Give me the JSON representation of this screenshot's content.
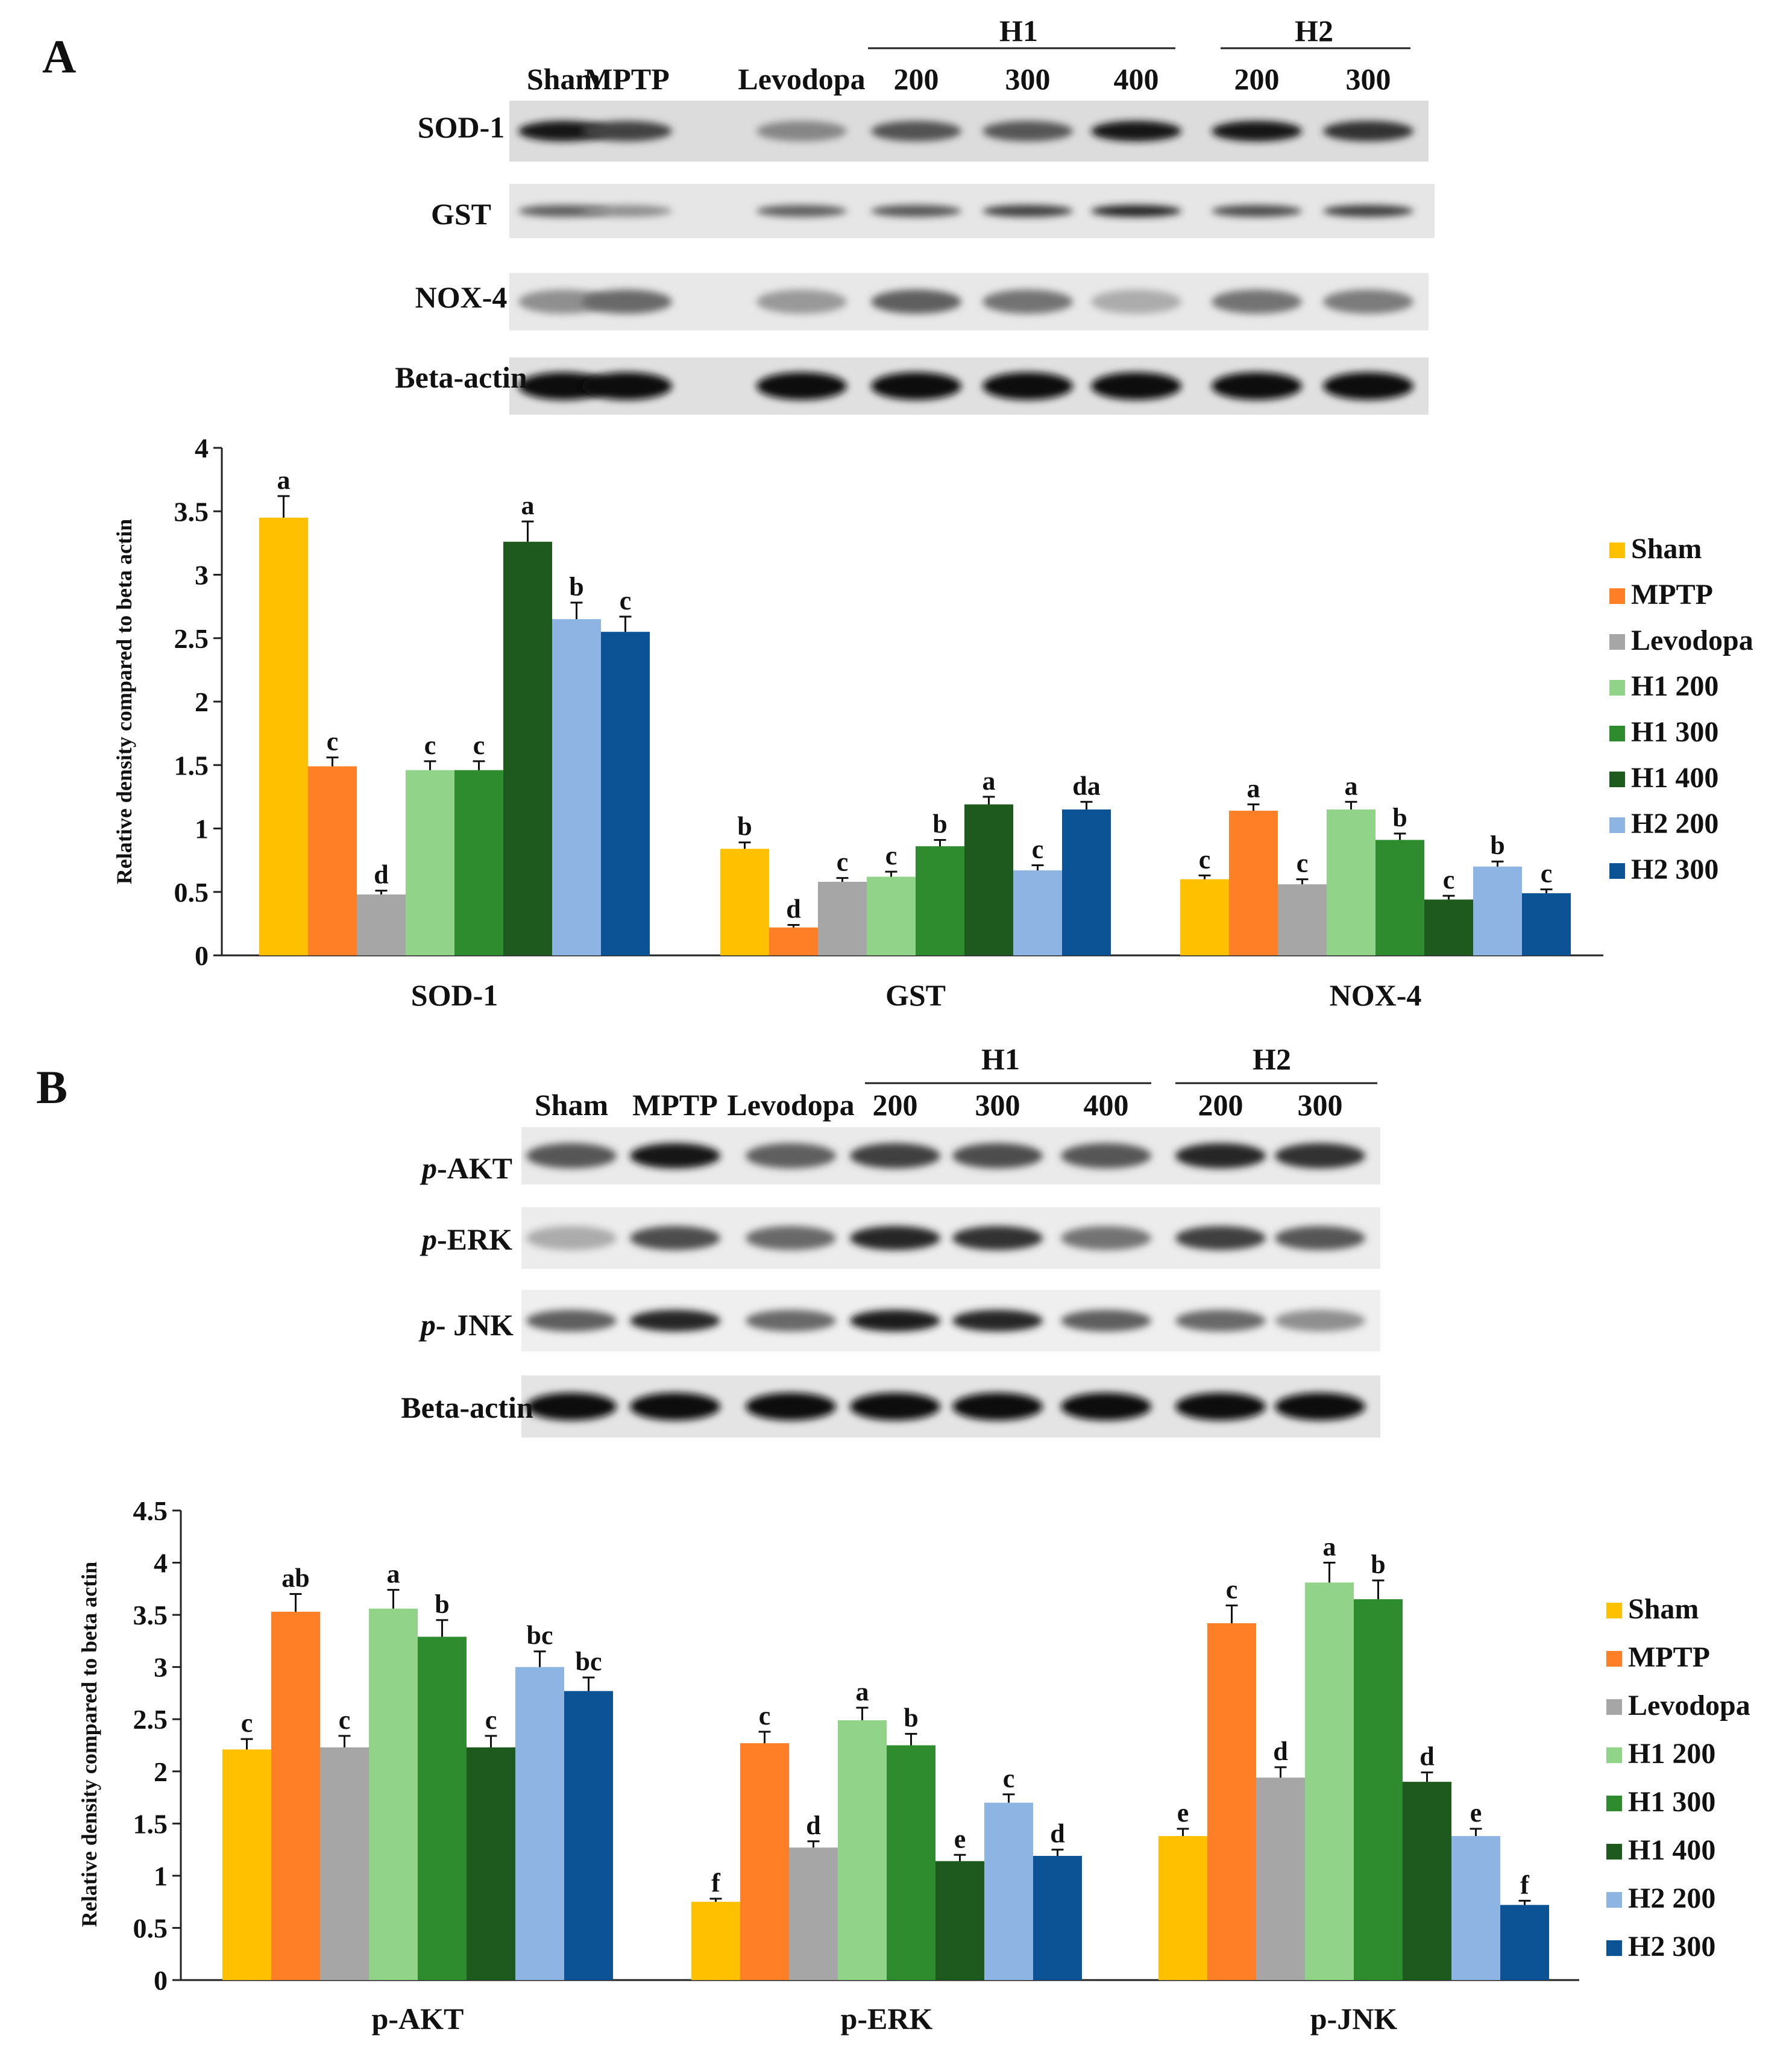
{
  "panels": [
    {
      "letter": "A",
      "group_headers": [
        "H1",
        "H2"
      ],
      "lane_labels": [
        "Sham",
        "MPTP",
        "Levodopa",
        "200",
        "300",
        "400",
        "200",
        "300"
      ],
      "blot_rows": [
        {
          "label": "SOD-1",
          "italic_prefix": ""
        },
        {
          "label": "GST",
          "italic_prefix": ""
        },
        {
          "label": "NOX-4",
          "italic_prefix": ""
        },
        {
          "label": "Beta-actin",
          "italic_prefix": ""
        }
      ]
    },
    {
      "letter": "B",
      "group_headers": [
        "H1",
        "H2"
      ],
      "lane_labels": [
        "Sham",
        "MPTP",
        "Levodopa",
        "200",
        "300",
        "400",
        "200",
        "300"
      ],
      "blot_rows": [
        {
          "label": "-AKT",
          "italic_prefix": "p"
        },
        {
          "label": "-ERK",
          "italic_prefix": "p"
        },
        {
          "label": "- JNK",
          "italic_prefix": "p"
        },
        {
          "label": "Beta-actin",
          "italic_prefix": ""
        }
      ]
    }
  ],
  "chart_data": [
    {
      "type": "bar",
      "panel": "A",
      "ylabel": "Relative density compared to beta actin",
      "ylim": [
        0,
        4
      ],
      "yticks": [
        "0",
        "0.5",
        "1",
        "1.5",
        "2",
        "2.5",
        "3",
        "3.5",
        "4"
      ],
      "yticks_values": [
        0,
        0.5,
        1,
        1.5,
        2,
        2.5,
        3,
        3.5,
        4
      ],
      "categories": [
        "SOD-1",
        "GST",
        "NOX-4"
      ],
      "legend_position": "right",
      "series": [
        {
          "name": "Sham",
          "color": "#FFC000",
          "values": [
            3.45,
            0.84,
            0.6
          ],
          "errors": [
            0.17,
            0.05,
            0.03
          ],
          "letters": [
            "a",
            "b",
            "c"
          ]
        },
        {
          "name": "MPTP",
          "color": "#FF7F27",
          "values": [
            1.49,
            0.22,
            1.14
          ],
          "errors": [
            0.07,
            0.02,
            0.05
          ],
          "letters": [
            "c",
            "d",
            "a"
          ]
        },
        {
          "name": "Levodopa",
          "color": "#A6A6A6",
          "values": [
            0.48,
            0.58,
            0.56
          ],
          "errors": [
            0.03,
            0.03,
            0.04
          ],
          "letters": [
            "d",
            "c",
            "c"
          ]
        },
        {
          "name": "H1 200",
          "color": "#92D38A",
          "values": [
            1.46,
            0.62,
            1.15
          ],
          "errors": [
            0.07,
            0.04,
            0.06
          ],
          "letters": [
            "c",
            "c",
            "a"
          ]
        },
        {
          "name": "H1 300",
          "color": "#2E8B2E",
          "values": [
            1.46,
            0.86,
            0.91
          ],
          "errors": [
            0.07,
            0.05,
            0.05
          ],
          "letters": [
            "c",
            "b",
            "b"
          ]
        },
        {
          "name": "H1 400",
          "color": "#1E5A1E",
          "values": [
            3.26,
            1.19,
            0.44
          ],
          "errors": [
            0.16,
            0.06,
            0.03
          ],
          "letters": [
            "a",
            "a",
            "c"
          ]
        },
        {
          "name": "H2 200",
          "color": "#8DB4E2",
          "values": [
            2.65,
            0.67,
            0.7
          ],
          "errors": [
            0.13,
            0.04,
            0.04
          ],
          "letters": [
            "b",
            "c",
            "b"
          ]
        },
        {
          "name": "H2 300",
          "color": "#0B5394",
          "values": [
            2.55,
            1.15,
            0.49
          ],
          "errors": [
            0.12,
            0.06,
            0.03
          ],
          "letters": [
            "c",
            "da",
            "c"
          ]
        }
      ]
    },
    {
      "type": "bar",
      "panel": "B",
      "ylabel": "Relative density compared to beta actin",
      "ylim": [
        0,
        4.5
      ],
      "yticks": [
        "0",
        "0.5",
        "1",
        "1.5",
        "2",
        "2.5",
        "3",
        "3.5",
        "4",
        "4.5"
      ],
      "yticks_values": [
        0,
        0.5,
        1,
        1.5,
        2,
        2.5,
        3,
        3.5,
        4,
        4.5
      ],
      "categories": [
        "p-AKT",
        "p-ERK",
        "p-JNK"
      ],
      "legend_position": "right",
      "series": [
        {
          "name": "Sham",
          "color": "#FFC000",
          "values": [
            2.21,
            0.75,
            1.38
          ],
          "errors": [
            0.1,
            0.03,
            0.07
          ],
          "letters": [
            "c",
            "f",
            "e"
          ]
        },
        {
          "name": "MPTP",
          "color": "#FF7F27",
          "values": [
            3.53,
            2.27,
            3.42
          ],
          "errors": [
            0.17,
            0.11,
            0.17
          ],
          "letters": [
            "ab",
            "c",
            "c"
          ]
        },
        {
          "name": "Levodopa",
          "color": "#A6A6A6",
          "values": [
            2.23,
            1.27,
            1.94
          ],
          "errors": [
            0.11,
            0.06,
            0.1
          ],
          "letters": [
            "c",
            "d",
            "d"
          ]
        },
        {
          "name": "H1 200",
          "color": "#92D38A",
          "values": [
            3.56,
            2.49,
            3.81
          ],
          "errors": [
            0.18,
            0.12,
            0.19
          ],
          "letters": [
            "a",
            "a",
            "a"
          ]
        },
        {
          "name": "H1 300",
          "color": "#2E8B2E",
          "values": [
            3.29,
            2.25,
            3.65
          ],
          "errors": [
            0.16,
            0.11,
            0.18
          ],
          "letters": [
            "b",
            "b",
            "b"
          ]
        },
        {
          "name": "H1 400",
          "color": "#1E5A1E",
          "values": [
            2.23,
            1.14,
            1.9
          ],
          "errors": [
            0.11,
            0.06,
            0.09
          ],
          "letters": [
            "c",
            "e",
            "d"
          ]
        },
        {
          "name": "H2 200",
          "color": "#8DB4E2",
          "values": [
            3.0,
            1.7,
            1.38
          ],
          "errors": [
            0.15,
            0.08,
            0.07
          ],
          "letters": [
            "bc",
            "c",
            "e"
          ]
        },
        {
          "name": "H2 300",
          "color": "#0B5394",
          "values": [
            2.77,
            1.19,
            0.72
          ],
          "errors": [
            0.13,
            0.06,
            0.04
          ],
          "letters": [
            "bc",
            "d",
            "f"
          ]
        }
      ]
    }
  ]
}
